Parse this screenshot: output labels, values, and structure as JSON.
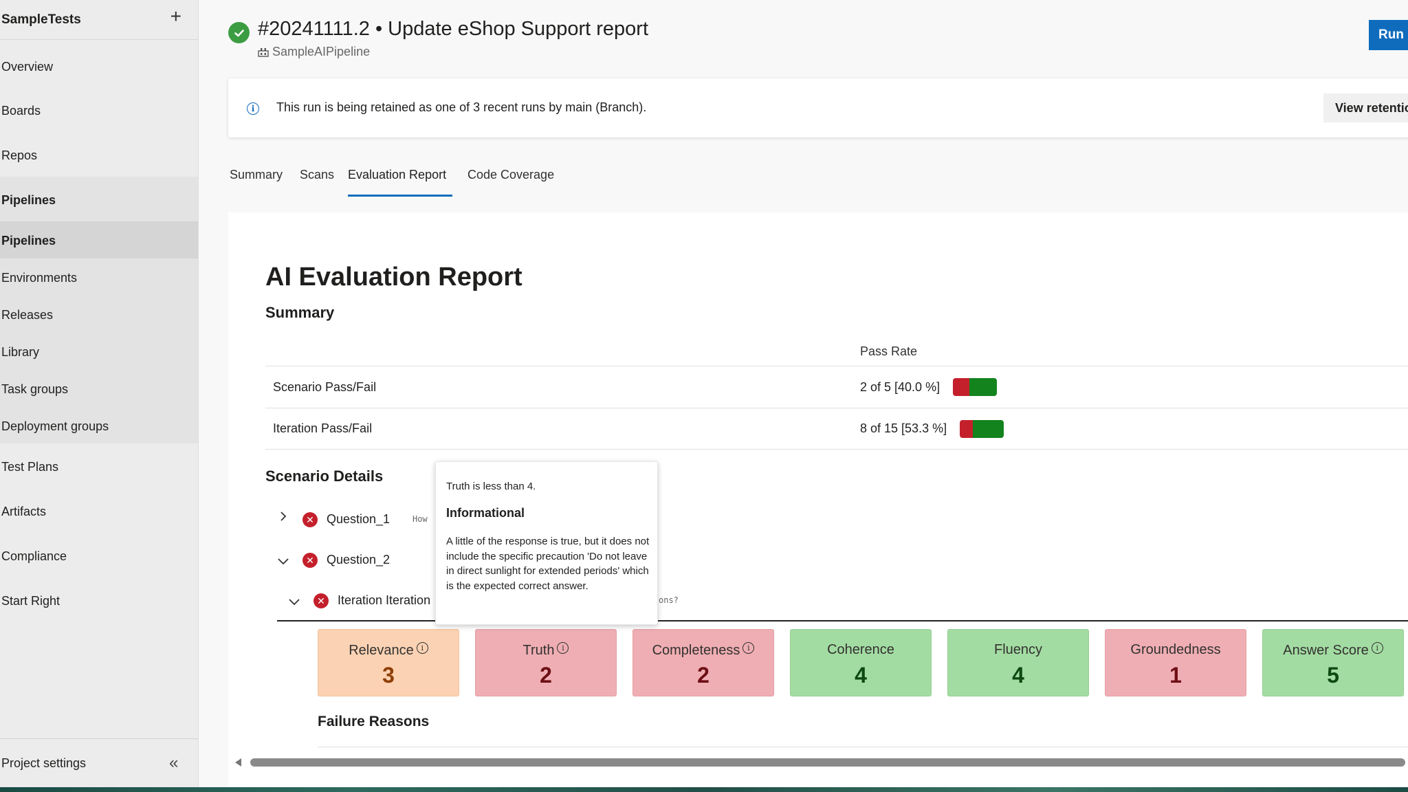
{
  "sidebar": {
    "project": "SampleTests",
    "items": [
      {
        "label": "Overview"
      },
      {
        "label": "Boards"
      },
      {
        "label": "Repos"
      },
      {
        "label": "Pipelines"
      },
      {
        "label": "Pipelines"
      },
      {
        "label": "Environments"
      },
      {
        "label": "Releases"
      },
      {
        "label": "Library"
      },
      {
        "label": "Task groups"
      },
      {
        "label": "Deployment groups"
      },
      {
        "label": "Test Plans"
      },
      {
        "label": "Artifacts"
      },
      {
        "label": "Compliance"
      },
      {
        "label": "Start Right"
      }
    ],
    "footer": "Project settings"
  },
  "header": {
    "title": "#20241111.2 • Update eShop Support report",
    "pipeline": "SampleAIPipeline",
    "run_label": "Run"
  },
  "banner": {
    "text": "This run is being retained as one of 3 recent runs by main (Branch).",
    "button": "View retention"
  },
  "tabs": [
    {
      "label": "Summary"
    },
    {
      "label": "Scans"
    },
    {
      "label": "Evaluation Report"
    },
    {
      "label": "Code Coverage"
    }
  ],
  "report": {
    "title": "AI Evaluation Report",
    "summary_heading": "Summary",
    "pass_rate_header": "Pass Rate",
    "rows": [
      {
        "label": "Scenario Pass/Fail",
        "value": "2 of 5 [40.0 %]",
        "pass_fraction": 0.4
      },
      {
        "label": "Iteration Pass/Fail",
        "value": "8 of 15 [53.3 %]",
        "pass_fraction": 0.533
      }
    ],
    "details_heading": "Scenario Details",
    "questions": [
      {
        "label": "Question_1",
        "hint": "How"
      },
      {
        "label": "Question_2"
      }
    ],
    "iteration": {
      "label": "Iteration Iteration",
      "hint": "ons?"
    },
    "metrics": [
      {
        "label": "Relevance",
        "value": "3",
        "status": "warning"
      },
      {
        "label": "Truth",
        "value": "2",
        "status": "fail"
      },
      {
        "label": "Completeness",
        "value": "2",
        "status": "fail"
      },
      {
        "label": "Coherence",
        "value": "4",
        "status": "pass"
      },
      {
        "label": "Fluency",
        "value": "4",
        "status": "pass"
      },
      {
        "label": "Groundedness",
        "value": "1",
        "status": "fail"
      },
      {
        "label": "Answer Score",
        "value": "5",
        "status": "pass"
      }
    ],
    "failure_heading": "Failure Reasons"
  },
  "tooltip": {
    "subtitle": "Truth is less than 4.",
    "title": "Informational",
    "body": "A little of the response is true, but it does not include the specific precaution 'Do not leave in direct sunlight for extended periods' which is the expected correct answer."
  },
  "colors": {
    "accent": "#0f6cbd",
    "success": "#3c9c42",
    "fail": "#c4202c",
    "pass_bar": "#13831d"
  },
  "icons": [
    "plus-icon",
    "collapse-icon",
    "success-check-icon",
    "pipeline-icon",
    "info-icon",
    "chevron-right-icon",
    "chevron-down-icon",
    "error-icon"
  ]
}
